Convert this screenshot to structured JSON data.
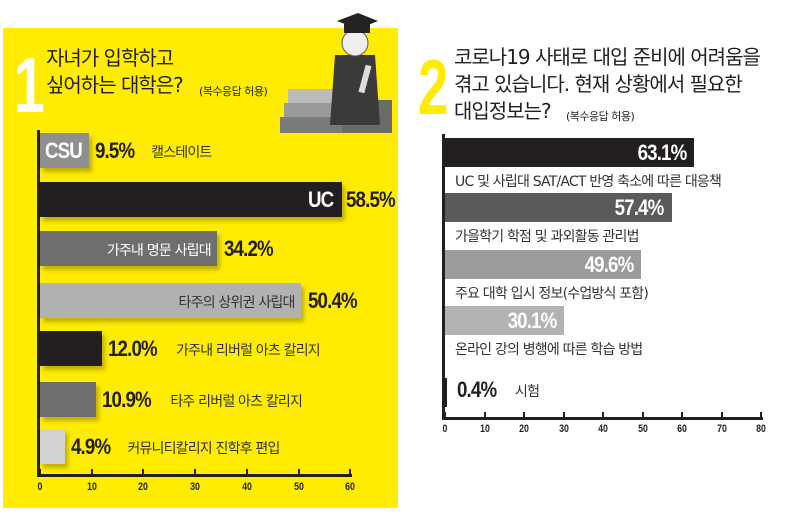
{
  "chart_data": [
    {
      "type": "bar",
      "orientation": "horizontal",
      "number": "1",
      "title": "자녀가 입학하고 싶어하는 대학은?",
      "title_lines": [
        "자녀가 입학하고",
        "싶어하는 대학은?"
      ],
      "note": "(복수응답 허용)",
      "xlim": [
        0,
        60
      ],
      "xticks": [
        "0",
        "10",
        "20",
        "30",
        "40",
        "50",
        "60"
      ],
      "bars": [
        {
          "code": "CSU",
          "value": 9.5,
          "pct": "9.5%",
          "label": "캘스테이트",
          "color": "#8f8f8f"
        },
        {
          "code": "UC",
          "value": 58.5,
          "pct": "58.5%",
          "label": "",
          "color": "#231f20"
        },
        {
          "code": "",
          "value": 34.2,
          "pct": "34.2%",
          "label": "가주내 명문 사립대",
          "color": "#6e6e6e"
        },
        {
          "code": "",
          "value": 50.4,
          "pct": "50.4%",
          "label": "타주의 상위권 사립대",
          "color": "#b1b1b1"
        },
        {
          "code": "",
          "value": 12.0,
          "pct": "12.0%",
          "label": "가주내 리버럴 아츠 칼리지",
          "color": "#231f20"
        },
        {
          "code": "",
          "value": 10.9,
          "pct": "10.9%",
          "label": "타주 리버럴 아츠 칼리지",
          "color": "#6e6e6e"
        },
        {
          "code": "",
          "value": 4.9,
          "pct": "4.9%",
          "label": "커뮤니티칼리지 진학후 편입",
          "color": "#d2d2d2"
        }
      ]
    },
    {
      "type": "bar",
      "orientation": "horizontal",
      "number": "2",
      "title": "코로나19 사태로 대입 준비에 어려움을 겪고 있습니다. 현재 상황에서 필요한 대입정보는?",
      "title_lines": [
        "코로나19 사태로 대입 준비에 어려움을",
        "겪고 있습니다. 현재 상황에서 필요한",
        "대입정보는?"
      ],
      "note": "(복수응답 허용)",
      "xlim": [
        0,
        80
      ],
      "xticks": [
        "0",
        "10",
        "20",
        "30",
        "40",
        "50",
        "60",
        "70",
        "80"
      ],
      "bars": [
        {
          "value": 63.1,
          "pct": "63.1%",
          "label": "UC 및 사립대 SAT/ACT 반영 축소에 따른 대응책",
          "color": "#231f20"
        },
        {
          "value": 57.4,
          "pct": "57.4%",
          "label": "가을학기 학점 및 과외활동 관리법",
          "color": "#5a5a5a"
        },
        {
          "value": 49.6,
          "pct": "49.6%",
          "label": "주요 대학 입시 정보(수업방식 포함)",
          "color": "#9c9c9c"
        },
        {
          "value": 30.1,
          "pct": "30.1%",
          "label": "온라인 강의 병행에 따른 학습 방법",
          "color": "#b3b3b3"
        },
        {
          "value": 0.4,
          "pct": "0.4%",
          "label": "시험",
          "color": "#231f20"
        }
      ]
    }
  ]
}
